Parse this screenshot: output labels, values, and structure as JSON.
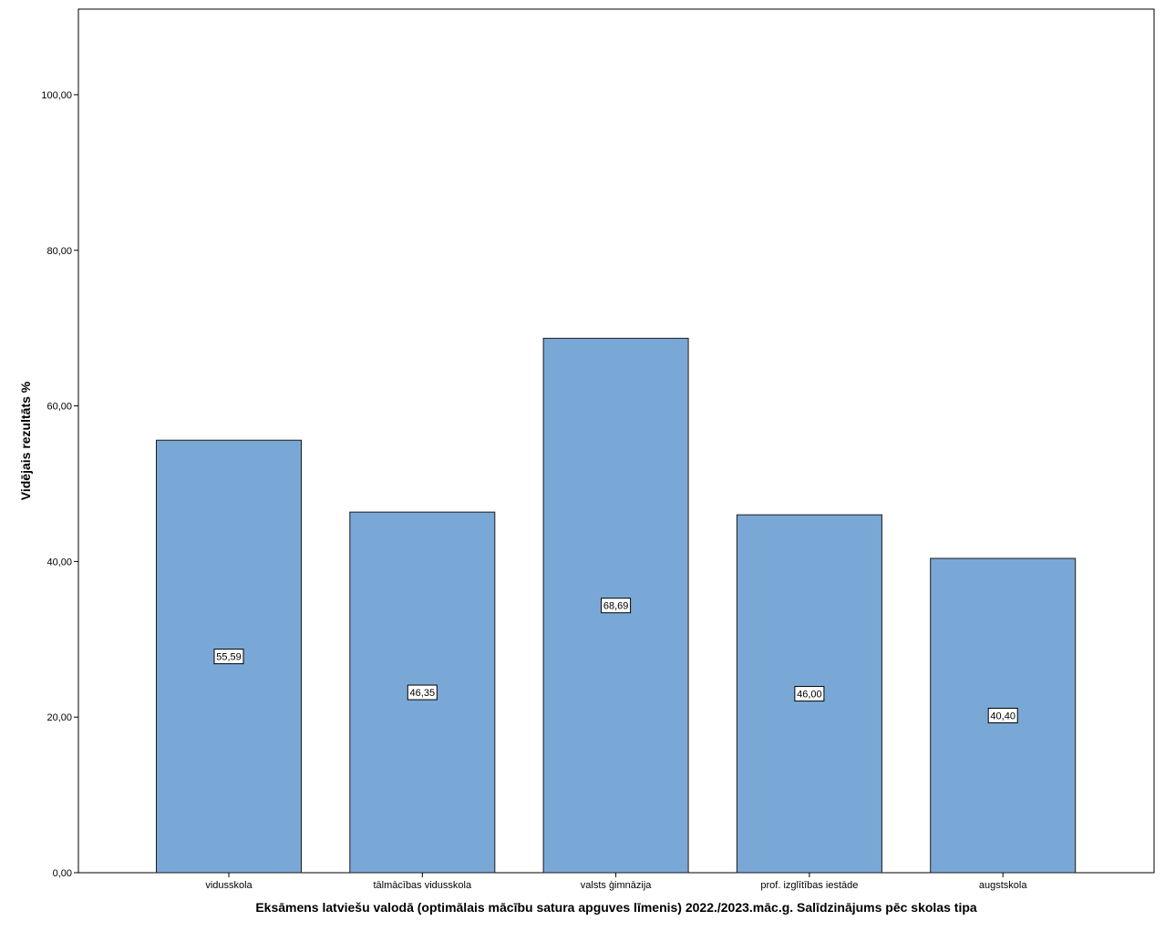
{
  "chart_data": {
    "type": "bar",
    "categories": [
      "vidusskola",
      "tālmācības vidusskola",
      "valsts ģimnāzija",
      "prof. izglītības iestāde",
      "augstskola"
    ],
    "values": [
      55.59,
      46.35,
      68.69,
      46.0,
      40.4
    ],
    "value_labels": [
      "55,59",
      "46,35",
      "68,69",
      "46,00",
      "40,40"
    ],
    "xlabel": "Eksāmens latviešu valodā (optimālais mācību satura apguves līmenis) 2022./2023.māc.g. Salīdzinājums pēc skolas tipa",
    "ylabel": "Vidējais rezultāts %",
    "ylim": [
      0,
      111
    ],
    "yticks": [
      0,
      20,
      40,
      60,
      80,
      100
    ],
    "ytick_labels": [
      "0,00",
      "20,00",
      "40,00",
      "60,00",
      "80,00",
      "100,00"
    ],
    "bar_color": "#7aa8d6",
    "bar_edge_color": "#1a1a1a",
    "grid": false,
    "legend": "none"
  }
}
